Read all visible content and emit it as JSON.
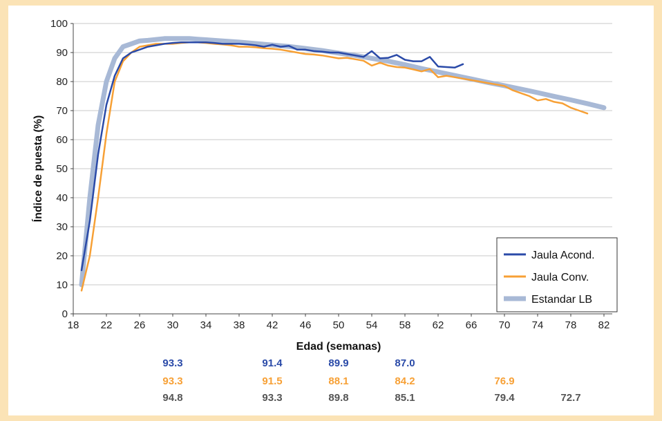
{
  "chart_data": {
    "type": "line",
    "xlabel": "Edad (semanas)",
    "ylabel": "Índice de puesta (%)",
    "xlim": [
      18,
      83
    ],
    "ylim": [
      0,
      100
    ],
    "x_ticks": [
      "18",
      "22",
      "26",
      "30",
      "34",
      "38",
      "42",
      "46",
      "50",
      "54",
      "58",
      "62",
      "66",
      "70",
      "74",
      "78",
      "82"
    ],
    "y_ticks": [
      "0",
      "10",
      "20",
      "30",
      "40",
      "50",
      "60",
      "70",
      "80",
      "90",
      "100"
    ],
    "grid": "horizontal",
    "legend_position": "bottom-right",
    "series": [
      {
        "name": "Jaula Acond.",
        "color": "#2a4aa8",
        "x": [
          19,
          20,
          21,
          22,
          23,
          24,
          25,
          26,
          27,
          28,
          29,
          30,
          31,
          32,
          33,
          34,
          35,
          36,
          37,
          38,
          39,
          40,
          41,
          42,
          43,
          44,
          45,
          46,
          47,
          48,
          49,
          50,
          51,
          52,
          53,
          54,
          55,
          56,
          57,
          58,
          59,
          60,
          61,
          62,
          63,
          64,
          65
        ],
        "y": [
          15,
          32,
          55,
          72,
          82,
          88,
          90,
          91,
          92,
          92.5,
          93,
          93.3,
          93.5,
          93.5,
          93.5,
          93.5,
          93.3,
          93,
          93,
          93,
          92.8,
          92.5,
          92,
          92.7,
          92,
          92.3,
          91,
          91,
          90.5,
          90.3,
          90,
          90,
          89.5,
          89,
          88.5,
          90.5,
          88,
          88.2,
          89.2,
          87.5,
          87,
          87,
          88.5,
          85.2,
          85,
          84.8,
          86
        ]
      },
      {
        "name": "Jaula Conv.",
        "color": "#f7a035",
        "x": [
          19,
          20,
          21,
          22,
          23,
          24,
          25,
          26,
          27,
          28,
          29,
          30,
          31,
          32,
          33,
          34,
          35,
          36,
          37,
          38,
          39,
          40,
          41,
          42,
          43,
          44,
          45,
          46,
          47,
          48,
          49,
          50,
          51,
          52,
          53,
          54,
          55,
          56,
          57,
          58,
          59,
          60,
          61,
          62,
          63,
          64,
          65,
          66,
          67,
          68,
          69,
          70,
          71,
          72,
          73,
          74,
          75,
          76,
          77,
          78,
          79,
          80
        ],
        "y": [
          8,
          20,
          40,
          62,
          80,
          87,
          90,
          92,
          92.5,
          93,
          93,
          93,
          93.3,
          93.5,
          93.5,
          93.3,
          93,
          92.8,
          92.5,
          92,
          92,
          91.8,
          91.5,
          91.3,
          91,
          90.5,
          90,
          89.5,
          89.3,
          89,
          88.5,
          88,
          88.2,
          87.7,
          87.2,
          85.5,
          86.5,
          85.5,
          85,
          84.8,
          84.2,
          83.5,
          84.3,
          81.5,
          82,
          81.5,
          81,
          80.5,
          80,
          79.5,
          79,
          78.5,
          77,
          76,
          75,
          73.5,
          74,
          73,
          72.5,
          71,
          70,
          69
        ]
      },
      {
        "name": "Estandar LB",
        "color": "#a8b9d6",
        "x": [
          19,
          20,
          21,
          22,
          23,
          24,
          25,
          26,
          27,
          28,
          29,
          30,
          31,
          32,
          33,
          34,
          36,
          38,
          40,
          42,
          44,
          46,
          48,
          50,
          52,
          54,
          56,
          58,
          60,
          62,
          64,
          66,
          68,
          70,
          72,
          74,
          76,
          78,
          80,
          82
        ],
        "y": [
          10,
          40,
          65,
          80,
          88,
          92,
          93,
          94,
          94.2,
          94.5,
          94.8,
          94.8,
          94.8,
          94.8,
          94.6,
          94.4,
          94,
          93.6,
          93.1,
          92.6,
          92.1,
          91.4,
          90.7,
          89.8,
          89,
          88,
          87,
          85.8,
          84.5,
          83.3,
          82.1,
          80.9,
          79.7,
          78.6,
          77.4,
          76.2,
          74.9,
          73.7,
          72.4,
          71
        ]
      }
    ],
    "averages": {
      "positions": [
        30,
        42,
        50,
        58,
        70,
        78
      ],
      "rows": [
        {
          "series": "Jaula Acond.",
          "color": "#2a4aa8",
          "values": [
            "93.3",
            "91.4",
            "89.9",
            "87.0",
            null,
            null
          ]
        },
        {
          "series": "Jaula Conv.",
          "color": "#f7a035",
          "values": [
            "93.3",
            "91.5",
            "88.1",
            "84.2",
            "76.9",
            null
          ]
        },
        {
          "series": "Estandar LB",
          "color": "#555555",
          "values": [
            "94.8",
            "93.3",
            "89.8",
            "85.1",
            "79.4",
            "72.7"
          ]
        }
      ]
    }
  }
}
